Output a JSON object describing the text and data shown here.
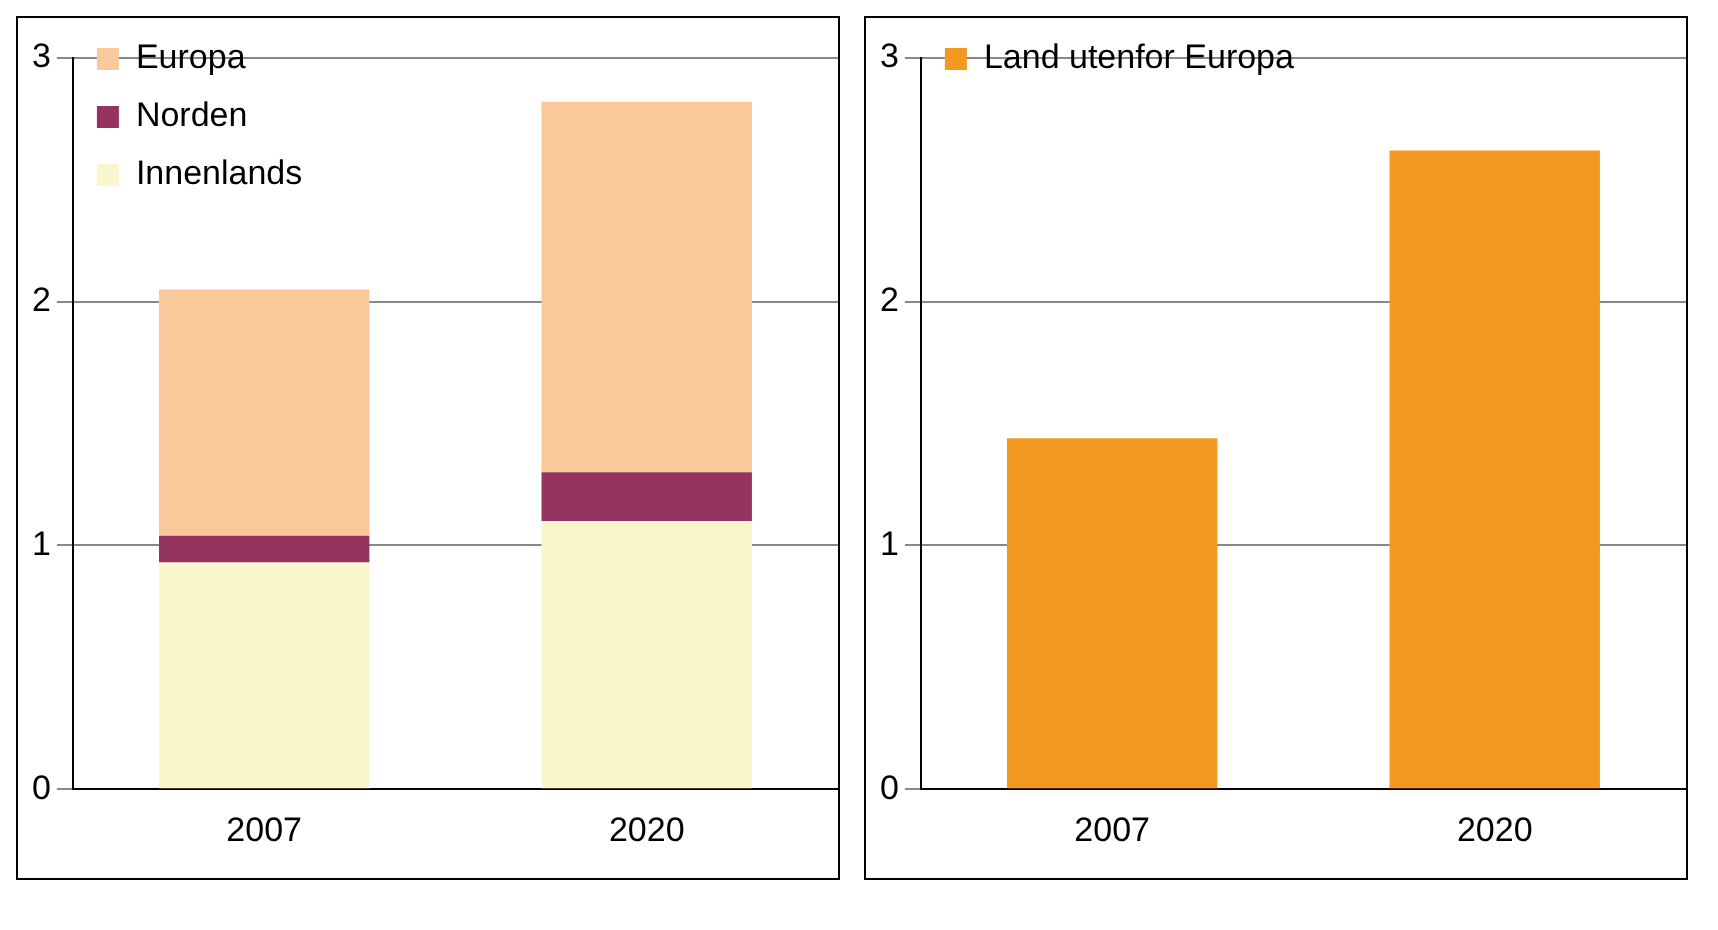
{
  "chart_data": [
    {
      "type": "bar",
      "stacked": true,
      "categories": [
        "2007",
        "2020"
      ],
      "series": [
        {
          "name": "Innenlands",
          "color": "#faf6cc",
          "values": [
            0.93,
            1.1
          ]
        },
        {
          "name": "Norden",
          "color": "#953461",
          "values": [
            0.11,
            0.2
          ]
        },
        {
          "name": "Europa",
          "color": "#f9c99a",
          "values": [
            1.01,
            1.52
          ]
        }
      ],
      "ylim": [
        0,
        3
      ],
      "yticks": [
        0,
        1,
        2,
        3
      ],
      "grid": "y",
      "legend": "top left"
    },
    {
      "type": "bar",
      "categories": [
        "2007",
        "2020"
      ],
      "series": [
        {
          "name": "Land utenfor Europa",
          "color": "#f39821",
          "values": [
            1.44,
            2.62
          ]
        }
      ],
      "ylim": [
        0,
        3
      ],
      "yticks": [
        0,
        1,
        2,
        3
      ],
      "grid": "y",
      "legend": "top left"
    }
  ]
}
